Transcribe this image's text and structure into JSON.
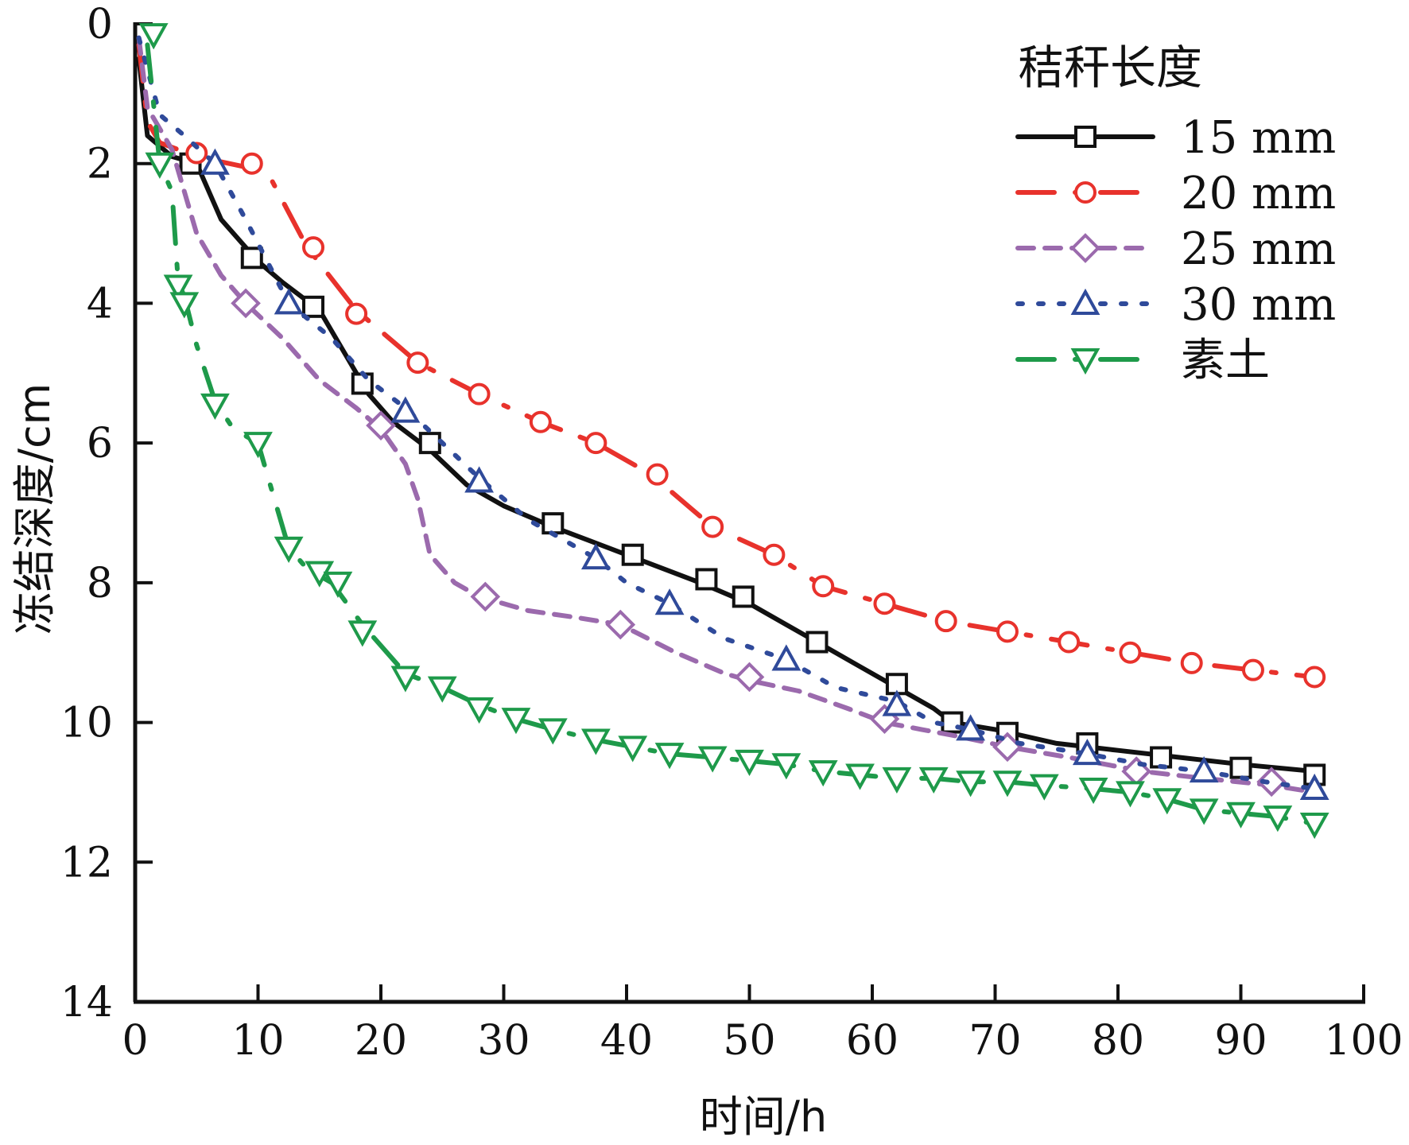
{
  "chart_data": {
    "type": "line",
    "xlabel": "时间/h",
    "ylabel": "冻结深度/cm",
    "xlim": [
      0,
      100
    ],
    "ylim": [
      0,
      14
    ],
    "y_inverted": true,
    "xticks": [
      0,
      10,
      20,
      30,
      40,
      50,
      60,
      70,
      80,
      90,
      100
    ],
    "yticks": [
      0,
      2,
      4,
      6,
      8,
      10,
      12,
      14
    ],
    "grid": false,
    "legend": {
      "title": "秸秆长度",
      "placement": "top-right"
    },
    "series": [
      {
        "name": "15 mm",
        "color": "#111111",
        "marker": "square",
        "dash": "solid",
        "line_x": [
          0.3,
          1,
          3,
          5,
          7,
          10,
          12,
          15,
          17,
          19,
          21,
          24,
          27,
          30,
          34,
          37,
          40,
          43,
          46,
          50,
          53,
          56,
          59,
          62,
          65,
          66.5,
          70,
          75,
          80,
          85,
          90,
          96
        ],
        "line_y": [
          0.5,
          1.6,
          1.9,
          2.0,
          2.8,
          3.4,
          3.7,
          4.1,
          4.7,
          5.3,
          5.7,
          6.1,
          6.6,
          6.9,
          7.2,
          7.4,
          7.6,
          7.8,
          8.0,
          8.3,
          8.6,
          8.9,
          9.2,
          9.5,
          9.8,
          10.0,
          10.1,
          10.3,
          10.4,
          10.5,
          10.6,
          10.7
        ],
        "marker_x": [
          4.5,
          9.5,
          14.5,
          18.5,
          24,
          34,
          40.5,
          46.5,
          49.5,
          55.5,
          62,
          66.5,
          71,
          77.5,
          83.5,
          90,
          96
        ],
        "marker_y": [
          2.0,
          3.35,
          4.05,
          5.15,
          6.0,
          7.15,
          7.6,
          7.95,
          8.2,
          8.85,
          9.45,
          10.0,
          10.15,
          10.3,
          10.5,
          10.65,
          10.75
        ]
      },
      {
        "name": "20 mm",
        "color": "#e8322c",
        "marker": "circle",
        "dash": "long-dash-dot",
        "line_x": [
          0.3,
          1,
          2,
          5,
          9,
          11,
          14,
          18,
          23,
          28,
          33,
          37.5,
          42,
          47,
          52,
          56,
          61,
          66,
          71,
          76,
          81,
          86,
          91,
          96
        ],
        "line_y": [
          0.3,
          1.4,
          1.7,
          1.9,
          2.05,
          2.2,
          3.2,
          4.1,
          4.85,
          5.3,
          5.7,
          6.0,
          6.45,
          7.2,
          7.6,
          8.05,
          8.3,
          8.55,
          8.7,
          8.85,
          9.0,
          9.15,
          9.25,
          9.35
        ],
        "marker_x": [
          5,
          9.5,
          14.5,
          18,
          23,
          28,
          33,
          37.5,
          42.5,
          47,
          52,
          56,
          61,
          66,
          71,
          76,
          81,
          86,
          91,
          96
        ],
        "marker_y": [
          1.85,
          2.0,
          3.2,
          4.15,
          4.85,
          5.3,
          5.7,
          6.0,
          6.45,
          7.2,
          7.6,
          8.05,
          8.3,
          8.55,
          8.7,
          8.85,
          9.0,
          9.15,
          9.25,
          9.35
        ]
      },
      {
        "name": "25 mm",
        "color": "#9b6aad",
        "marker": "diamond",
        "dash": "short-dash",
        "line_x": [
          0.3,
          1,
          3,
          5,
          7,
          9,
          12,
          15,
          18,
          20,
          22,
          23,
          24,
          26,
          28,
          32,
          36,
          39.5,
          44,
          48,
          50,
          54,
          58,
          61,
          64,
          67,
          71,
          76,
          82,
          87,
          92.5,
          96
        ],
        "line_y": [
          0.2,
          1.2,
          1.8,
          3.0,
          3.6,
          4.0,
          4.5,
          5.1,
          5.5,
          5.8,
          6.3,
          6.8,
          7.6,
          8.0,
          8.2,
          8.4,
          8.5,
          8.6,
          9.0,
          9.3,
          9.4,
          9.55,
          9.8,
          10.0,
          10.1,
          10.2,
          10.35,
          10.5,
          10.7,
          10.8,
          10.9,
          11.0
        ],
        "marker_x": [
          9,
          20,
          28.5,
          39.5,
          50,
          61,
          71,
          81.5,
          92.5
        ],
        "marker_y": [
          4.0,
          5.75,
          8.2,
          8.6,
          9.35,
          9.95,
          10.35,
          10.7,
          10.85
        ]
      },
      {
        "name": "30 mm",
        "color": "#2f4a9a",
        "marker": "triangle-up",
        "dash": "dot",
        "line_x": [
          0.3,
          2,
          4,
          6.5,
          9,
          12.5,
          16,
          19,
          22,
          25,
          28,
          32,
          37.5,
          40,
          43.5,
          48,
          53,
          57,
          62,
          65,
          68,
          72,
          77.5,
          82,
          87,
          92,
          96
        ],
        "line_y": [
          0.2,
          1.3,
          1.6,
          2.0,
          2.8,
          4.0,
          4.5,
          5.1,
          5.5,
          6.0,
          6.5,
          7.1,
          7.65,
          8.0,
          8.3,
          8.8,
          9.1,
          9.5,
          9.7,
          10.0,
          10.1,
          10.3,
          10.45,
          10.6,
          10.7,
          10.85,
          10.95
        ],
        "marker_x": [
          6.5,
          12.5,
          22,
          28,
          37.5,
          43.5,
          53,
          62,
          68,
          77.5,
          87,
          96
        ],
        "marker_y": [
          2.0,
          4.0,
          5.55,
          6.55,
          7.65,
          8.3,
          9.1,
          9.75,
          10.1,
          10.45,
          10.7,
          10.95
        ]
      },
      {
        "name": "素土",
        "color": "#1e9a4a",
        "marker": "triangle-down",
        "dash": "long-dash-dot",
        "line_x": [
          1,
          2,
          3,
          3.5,
          4,
          5,
          6.5,
          8,
          10,
          11,
          12.5,
          14,
          16,
          18.5,
          22,
          25,
          28,
          31,
          34,
          37.5,
          40.5,
          43.5,
          47,
          50,
          53,
          56,
          59,
          62,
          65,
          68,
          71,
          74,
          78,
          81,
          84,
          87,
          90,
          93,
          96
        ],
        "line_y": [
          0.3,
          2.0,
          2.4,
          3.7,
          3.9,
          4.6,
          5.4,
          5.8,
          6.0,
          6.6,
          7.5,
          7.8,
          8.0,
          8.6,
          9.3,
          9.5,
          9.75,
          9.95,
          10.1,
          10.25,
          10.35,
          10.45,
          10.5,
          10.55,
          10.6,
          10.7,
          10.75,
          10.8,
          10.8,
          10.85,
          10.85,
          10.9,
          10.95,
          11.0,
          11.1,
          11.25,
          11.3,
          11.35,
          11.45
        ],
        "marker_x": [
          1.5,
          2,
          3.5,
          4,
          6.5,
          10,
          12.5,
          15,
          16.5,
          18.5,
          22,
          25,
          28,
          31,
          34,
          37.5,
          40.5,
          43.5,
          47,
          50,
          53,
          56,
          59,
          62,
          65,
          68,
          71,
          74,
          78,
          81,
          84,
          87,
          90,
          93,
          96
        ],
        "marker_y": [
          0.15,
          2.0,
          3.75,
          4.0,
          5.45,
          6.0,
          7.5,
          7.85,
          8.0,
          8.7,
          9.35,
          9.5,
          9.8,
          9.95,
          10.1,
          10.25,
          10.35,
          10.45,
          10.5,
          10.55,
          10.6,
          10.7,
          10.75,
          10.8,
          10.8,
          10.85,
          10.85,
          10.9,
          10.95,
          11.0,
          11.1,
          11.25,
          11.3,
          11.35,
          11.45
        ]
      }
    ]
  }
}
